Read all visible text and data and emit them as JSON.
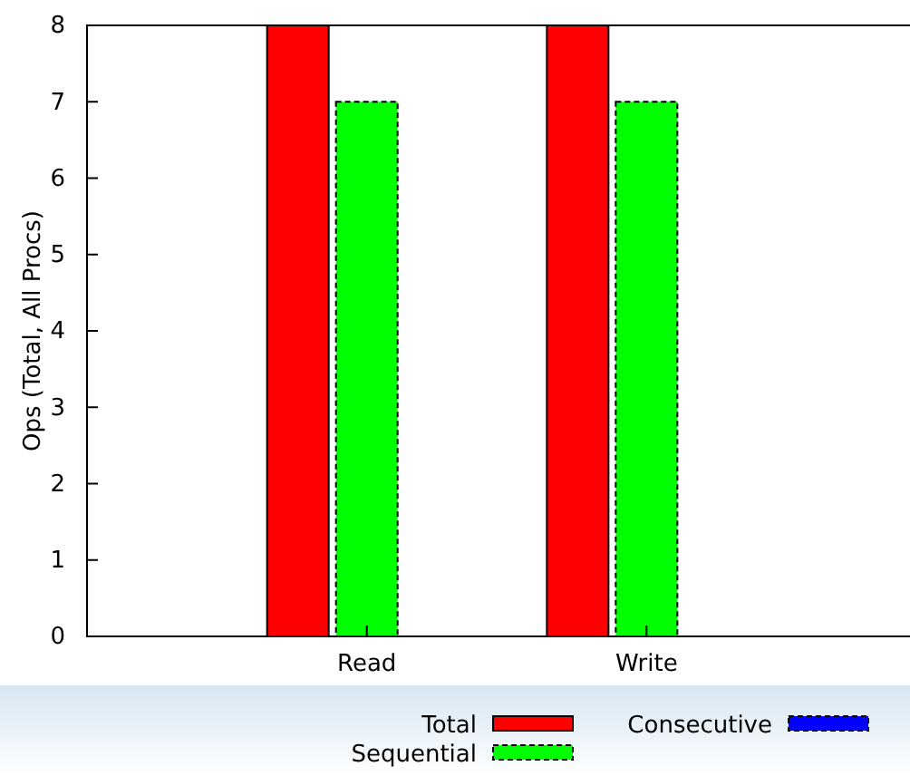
{
  "chart_data": {
    "type": "bar",
    "ylabel": "Ops (Total, All Procs)",
    "categories": [
      "Read",
      "Write"
    ],
    "series": [
      {
        "name": "Total",
        "color": "#ff0000",
        "values": [
          8,
          8
        ]
      },
      {
        "name": "Sequential",
        "color": "#00ff00",
        "values": [
          7,
          7
        ]
      },
      {
        "name": "Consecutive",
        "color": "#0000ff",
        "values": [
          0,
          0
        ]
      }
    ],
    "ylim": [
      0,
      8
    ],
    "yticks": [
      0,
      1,
      2,
      3,
      4,
      5,
      6,
      7,
      8
    ],
    "legend": "bottom"
  }
}
